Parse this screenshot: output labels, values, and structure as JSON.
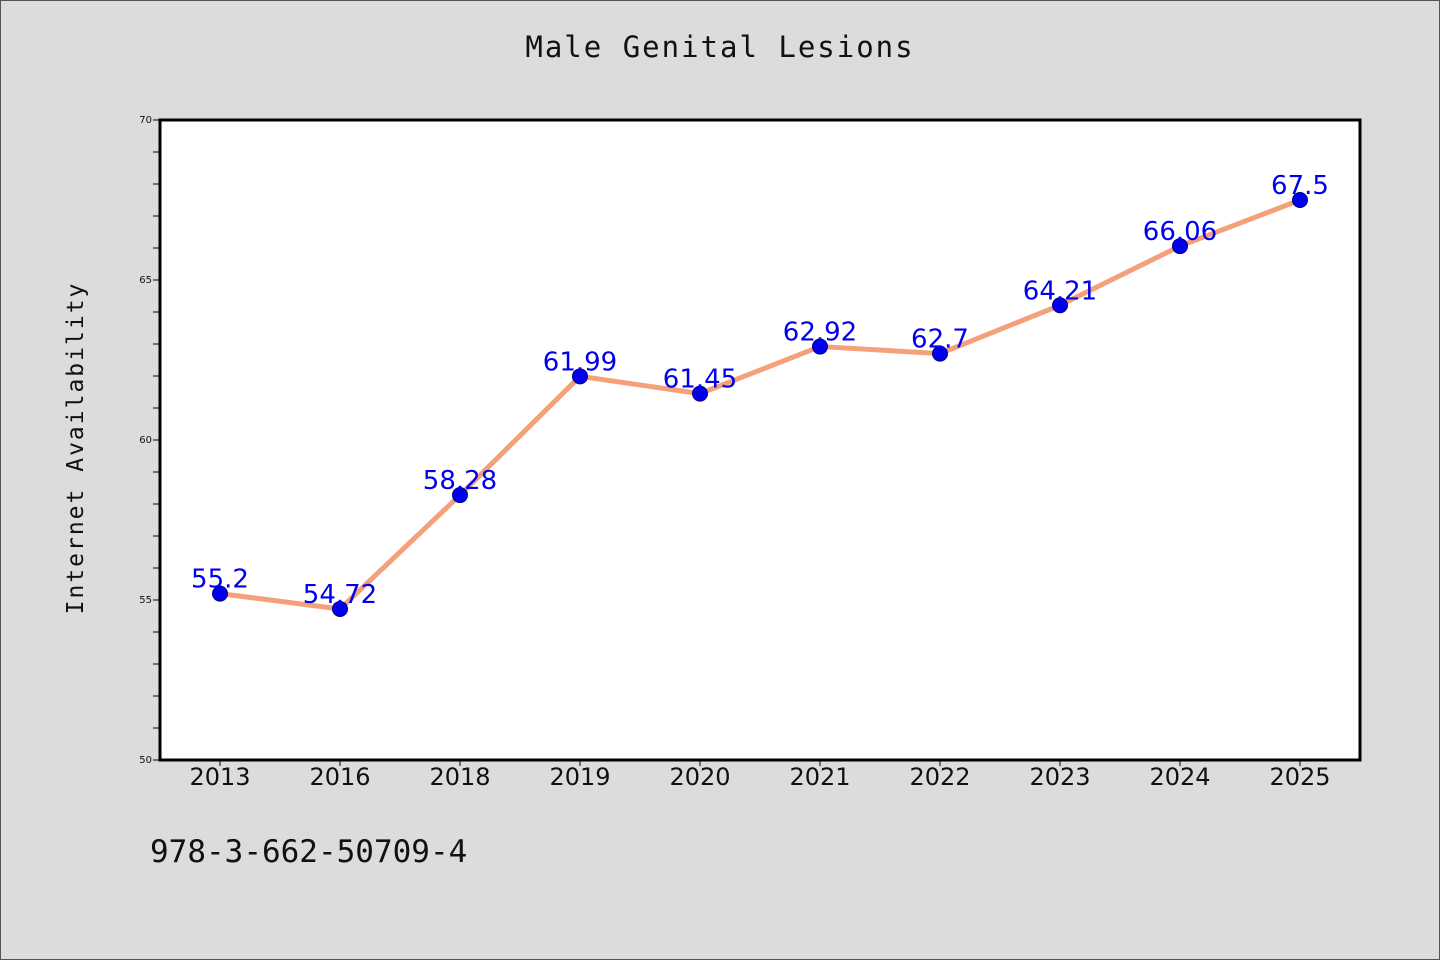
{
  "title": "Male Genital Lesions",
  "footer_text": "978-3-662-50709-4",
  "colors": {
    "background": "#dcdcdc",
    "plot_background": "#ffffff",
    "line": "#f4a07a",
    "marker": "#0000ee",
    "data_label": "#0000ee"
  },
  "chart_data": {
    "type": "line",
    "title": "Male Genital Lesions",
    "xlabel": "",
    "ylabel": "Internet Availability",
    "categories": [
      "2013",
      "2016",
      "2018",
      "2019",
      "2020",
      "2021",
      "2022",
      "2023",
      "2024",
      "2025"
    ],
    "series": [
      {
        "values": [
          55.2,
          54.72,
          58.28,
          61.99,
          61.45,
          62.92,
          62.7,
          64.21,
          66.06,
          67.5
        ]
      }
    ],
    "data_labels": [
      "55.2",
      "54.72",
      "58.28",
      "61.99",
      "61.45",
      "62.92",
      "62.7",
      "64.21",
      "66.06",
      "67.5"
    ],
    "ylim": [
      50,
      70
    ],
    "y_ticks": [
      50,
      55,
      60,
      65,
      70
    ],
    "y_minor_step": 1,
    "grid": false,
    "legend": "none"
  }
}
